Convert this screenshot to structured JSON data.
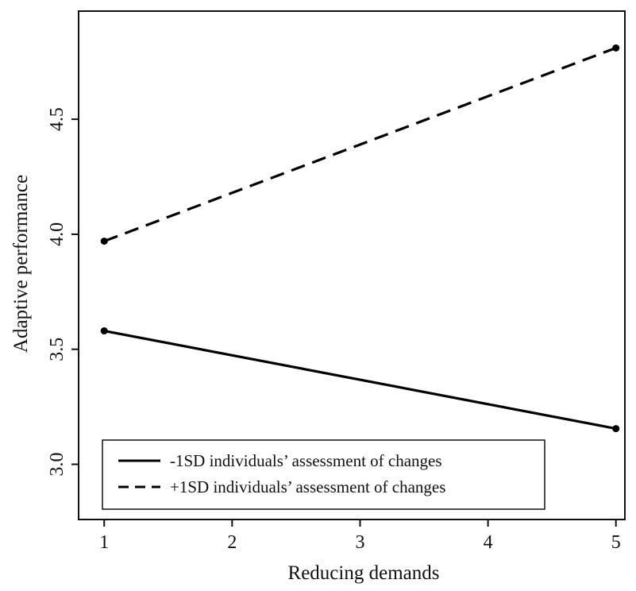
{
  "chart_data": {
    "type": "line",
    "xlabel": "Reducing demands",
    "ylabel": "Adaptive performance",
    "x": [
      1,
      5
    ],
    "xticks": [
      1,
      2,
      3,
      4,
      5
    ],
    "xtick_labels": [
      "1",
      "2",
      "3",
      "4",
      "5"
    ],
    "yticks": [
      3.0,
      3.5,
      4.0,
      4.5
    ],
    "ytick_labels": [
      "3.0",
      "3.5",
      "4.0",
      "4.5"
    ],
    "xlim": [
      0.8,
      5.07
    ],
    "ylim": [
      2.76,
      4.97
    ],
    "grid": false,
    "legend_position": "bottom-left",
    "series": [
      {
        "name": "-1SD individuals’ assessment of changes",
        "values": [
          3.58,
          3.155
        ],
        "line_style": "solid",
        "color": "#000000"
      },
      {
        "name": "+1SD individuals’ assessment of changes",
        "values": [
          3.97,
          4.81
        ],
        "line_style": "dashed",
        "color": "#000000"
      }
    ]
  }
}
